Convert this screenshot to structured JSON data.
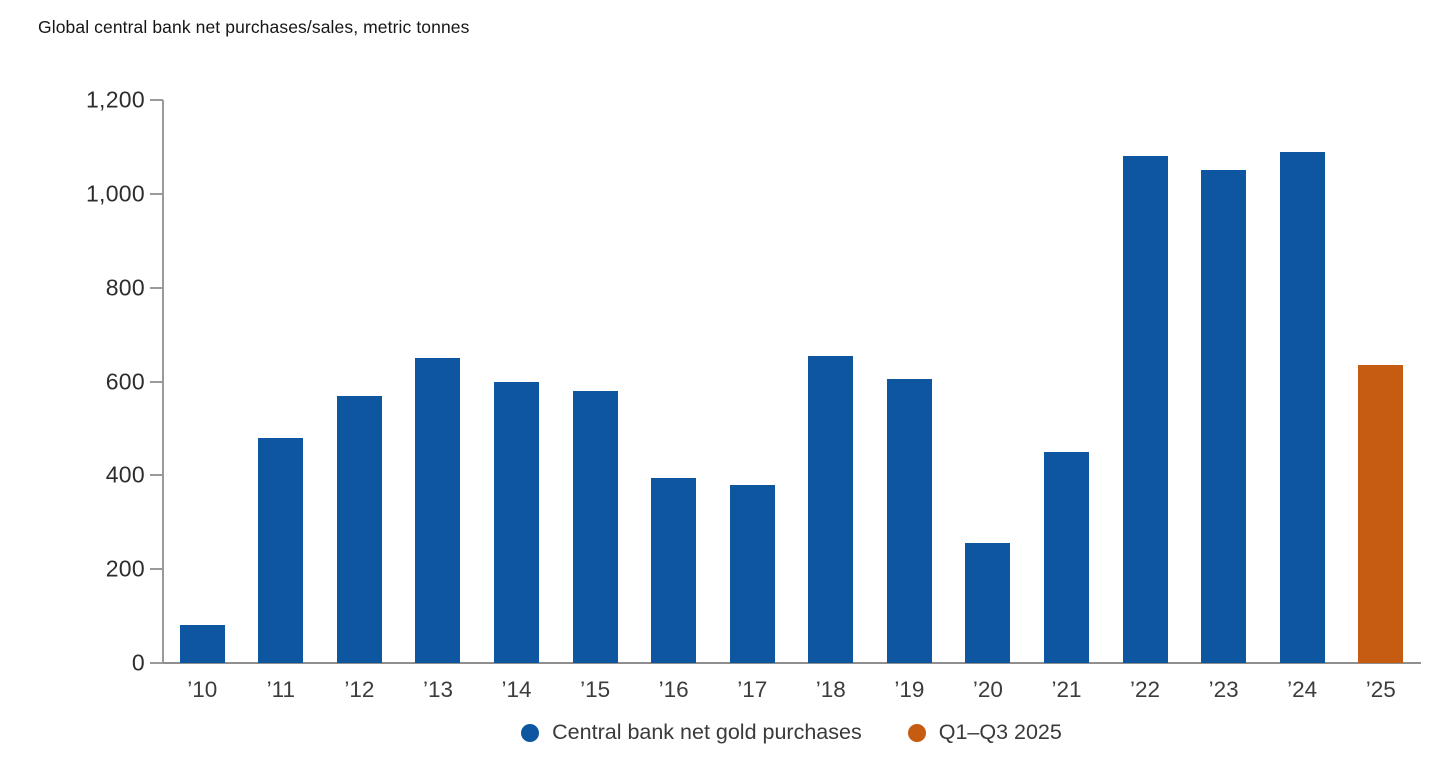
{
  "title": "Global central bank net purchases/sales, metric tonnes",
  "colors": {
    "bar_blue": "#0e56a0",
    "bar_orange": "#c65c11",
    "axis_line": "#9a9a9a",
    "y_tick_label": "#2e2d2c",
    "x_tick_label": "#3c3c3c",
    "title_text": "#161616",
    "background": "#ffffff"
  },
  "chart_data": {
    "type": "bar",
    "title": "Global central bank net purchases/sales, metric tonnes",
    "unit": "metric tonnes",
    "categories": [
      "’10",
      "’11",
      "’12",
      "’13",
      "’14",
      "’15",
      "’16",
      "’17",
      "’18",
      "’19",
      "’20",
      "’21",
      "’22",
      "’23",
      "’24",
      "’25"
    ],
    "values": [
      80,
      480,
      570,
      650,
      600,
      580,
      395,
      380,
      655,
      605,
      255,
      450,
      1080,
      1050,
      1090,
      635
    ],
    "bar_series": [
      0,
      0,
      0,
      0,
      0,
      0,
      0,
      0,
      0,
      0,
      0,
      0,
      0,
      0,
      0,
      1
    ],
    "series": [
      {
        "name": "Central bank net gold purchases",
        "color": "#0e56a0"
      },
      {
        "name": "Q1–Q3 2025",
        "color": "#c65c11"
      }
    ],
    "xlabel": "",
    "ylabel": "metric tonnes",
    "ylim": [
      0,
      1200
    ],
    "yticks": [
      0,
      200,
      400,
      600,
      800,
      1000,
      1200
    ],
    "grid": false,
    "legend_position": "bottom"
  }
}
